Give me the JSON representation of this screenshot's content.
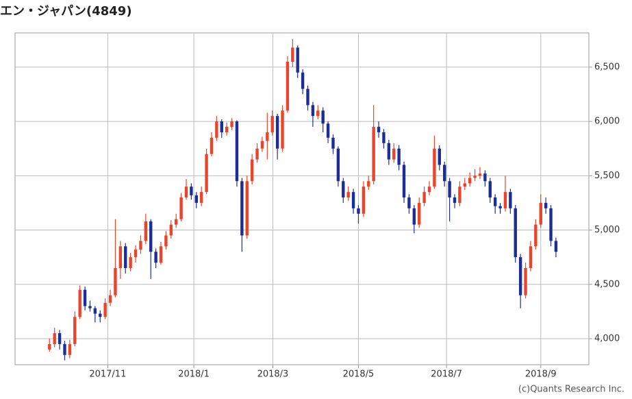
{
  "chart_data": {
    "type": "candlestick",
    "title": "エン・ジャパン(4849)",
    "credit": "(c)Quants Research Inc.",
    "up_color": "#e8452c",
    "down_color": "#1c2e96",
    "grid": true,
    "ylim": [
      3760,
      6815
    ],
    "yticks": [
      {
        "value": 4000,
        "label": "4,000"
      },
      {
        "value": 4500,
        "label": "4,500"
      },
      {
        "value": 5000,
        "label": "5,000"
      },
      {
        "value": 5500,
        "label": "5,500"
      },
      {
        "value": 6000,
        "label": "6,000"
      },
      {
        "value": 6500,
        "label": "6,500"
      }
    ],
    "xlim": [
      -6.8,
      106.5
    ],
    "xticks": [
      {
        "value": 11.5,
        "label": "2017/11"
      },
      {
        "value": 28.5,
        "label": "2018/1"
      },
      {
        "value": 44.1,
        "label": "2018/3"
      },
      {
        "value": 61,
        "label": "2018/5"
      },
      {
        "value": 78.4,
        "label": "2018/7"
      },
      {
        "value": 97,
        "label": "2018/9"
      }
    ],
    "candles": [
      [
        3900,
        4000,
        3880,
        3950
      ],
      [
        3950,
        4100,
        3920,
        4050
      ],
      [
        4050,
        4080,
        3900,
        3950
      ],
      [
        3950,
        3980,
        3800,
        3850
      ],
      [
        3850,
        3990,
        3820,
        3950
      ],
      [
        3950,
        4250,
        3930,
        4200
      ],
      [
        4200,
        4490,
        4180,
        4450
      ],
      [
        4450,
        4480,
        4260,
        4300
      ],
      [
        4300,
        4350,
        4250,
        4280
      ],
      [
        4280,
        4300,
        4150,
        4230
      ],
      [
        4230,
        4260,
        4150,
        4200
      ],
      [
        4200,
        4370,
        4180,
        4330
      ],
      [
        4330,
        4450,
        4300,
        4400
      ],
      [
        4400,
        5100,
        4380,
        4650
      ],
      [
        4650,
        4900,
        4550,
        4850
      ],
      [
        4850,
        4880,
        4600,
        4650
      ],
      [
        4650,
        4790,
        4620,
        4750
      ],
      [
        4750,
        4860,
        4700,
        4820
      ],
      [
        4820,
        4950,
        4780,
        4900
      ],
      [
        4900,
        5150,
        4870,
        5080
      ],
      [
        5080,
        5100,
        4550,
        4800
      ],
      [
        4800,
        4830,
        4650,
        4700
      ],
      [
        4700,
        4890,
        4680,
        4850
      ],
      [
        4850,
        4990,
        4820,
        4950
      ],
      [
        4950,
        5090,
        4920,
        5050
      ],
      [
        5050,
        5150,
        5020,
        5100
      ],
      [
        5100,
        5340,
        5080,
        5300
      ],
      [
        5300,
        5470,
        5280,
        5400
      ],
      [
        5400,
        5430,
        5280,
        5320
      ],
      [
        5320,
        5350,
        5200,
        5250
      ],
      [
        5250,
        5400,
        5220,
        5350
      ],
      [
        5350,
        5750,
        5330,
        5700
      ],
      [
        5700,
        5900,
        5680,
        5850
      ],
      [
        5850,
        6050,
        5820,
        6000
      ],
      [
        6000,
        6020,
        5850,
        5900
      ],
      [
        5900,
        5990,
        5870,
        5950
      ],
      [
        5950,
        6030,
        5920,
        6000
      ],
      [
        6000,
        6010,
        5400,
        5450
      ],
      [
        5450,
        5480,
        4800,
        4950
      ],
      [
        4950,
        5500,
        4920,
        5450
      ],
      [
        5450,
        5700,
        5420,
        5650
      ],
      [
        5650,
        5800,
        5620,
        5750
      ],
      [
        5750,
        5860,
        5720,
        5820
      ],
      [
        5820,
        6080,
        5650,
        5900
      ],
      [
        5900,
        6100,
        5870,
        6050
      ],
      [
        6050,
        6070,
        5650,
        5750
      ],
      [
        5750,
        6150,
        5720,
        6100
      ],
      [
        6100,
        6600,
        6080,
        6550
      ],
      [
        6550,
        6760,
        6500,
        6680
      ],
      [
        6680,
        6700,
        6400,
        6450
      ],
      [
        6450,
        6480,
        6250,
        6300
      ],
      [
        6300,
        6330,
        6100,
        6150
      ],
      [
        6150,
        6180,
        5950,
        6050
      ],
      [
        6050,
        6150,
        6020,
        6100
      ],
      [
        6100,
        6130,
        5900,
        5980
      ],
      [
        5980,
        6000,
        5800,
        5850
      ],
      [
        5850,
        5880,
        5700,
        5750
      ],
      [
        5750,
        5770,
        5400,
        5450
      ],
      [
        5450,
        5480,
        5250,
        5300
      ],
      [
        5300,
        5400,
        5270,
        5350
      ],
      [
        5350,
        5380,
        5150,
        5200
      ],
      [
        5200,
        5230,
        5060,
        5150
      ],
      [
        5150,
        5450,
        5120,
        5400
      ],
      [
        5400,
        5500,
        5370,
        5450
      ],
      [
        5450,
        6150,
        5420,
        5950
      ],
      [
        5950,
        6000,
        5850,
        5900
      ],
      [
        5900,
        5930,
        5750,
        5800
      ],
      [
        5800,
        5830,
        5600,
        5650
      ],
      [
        5650,
        5800,
        5620,
        5750
      ],
      [
        5750,
        5780,
        5550,
        5600
      ],
      [
        5600,
        5630,
        5250,
        5300
      ],
      [
        5300,
        5330,
        5150,
        5200
      ],
      [
        5200,
        5230,
        4970,
        5050
      ],
      [
        5050,
        5300,
        5020,
        5250
      ],
      [
        5250,
        5400,
        5220,
        5350
      ],
      [
        5350,
        5450,
        5320,
        5400
      ],
      [
        5400,
        5870,
        5380,
        5750
      ],
      [
        5750,
        5780,
        5550,
        5600
      ],
      [
        5600,
        5630,
        5400,
        5450
      ],
      [
        5450,
        5480,
        5080,
        5300
      ],
      [
        5300,
        5330,
        5200,
        5250
      ],
      [
        5250,
        5450,
        5220,
        5400
      ],
      [
        5400,
        5480,
        5370,
        5430
      ],
      [
        5430,
        5530,
        5400,
        5480
      ],
      [
        5480,
        5560,
        5450,
        5500
      ],
      [
        5500,
        5580,
        5470,
        5520
      ],
      [
        5520,
        5550,
        5400,
        5450
      ],
      [
        5450,
        5480,
        5250,
        5300
      ],
      [
        5300,
        5330,
        5150,
        5220
      ],
      [
        5220,
        5250,
        5150,
        5200
      ],
      [
        5200,
        5500,
        5170,
        5350
      ],
      [
        5350,
        5380,
        5150,
        5200
      ],
      [
        5200,
        5230,
        4700,
        4750
      ],
      [
        4750,
        4780,
        4280,
        4400
      ],
      [
        4400,
        4700,
        4370,
        4650
      ],
      [
        4650,
        4900,
        4620,
        4850
      ],
      [
        4850,
        5100,
        4820,
        5050
      ],
      [
        5050,
        5330,
        5020,
        5250
      ],
      [
        5250,
        5300,
        5150,
        5200
      ],
      [
        5200,
        5230,
        4850,
        4900
      ],
      [
        4900,
        4930,
        4750,
        4800
      ]
    ]
  }
}
